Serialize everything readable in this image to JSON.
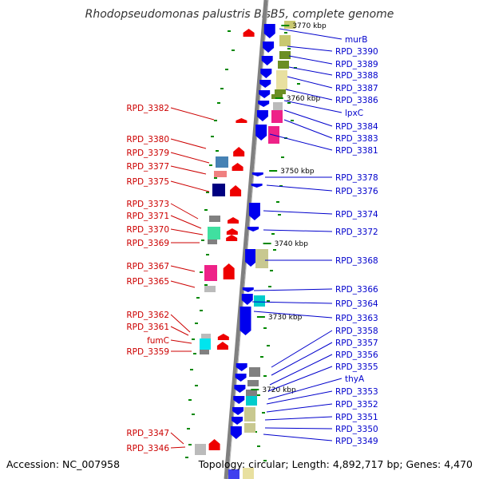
{
  "title": "Rhodopseudomonas palustris BisB5, complete genome",
  "footer": {
    "accession": "Accession: NC_007958",
    "summary": "Topology: circular; Length: 4,892,717 bp; Genes: 4,470"
  },
  "ticks": [
    "3770 kbp",
    "3760 kbp",
    "3750 kbp",
    "3740 kbp",
    "3730 kbp",
    "3720 kbp"
  ],
  "left_labels": [
    "RPD_3382",
    "RPD_3380",
    "RPD_3379",
    "RPD_3377",
    "RPD_3375",
    "RPD_3373",
    "RPD_3371",
    "RPD_3370",
    "RPD_3369",
    "RPD_3367",
    "RPD_3365",
    "RPD_3362",
    "RPD_3361",
    "fumC",
    "RPD_3359",
    "RPD_3347",
    "RPD_3346"
  ],
  "right_labels": [
    "murB",
    "RPD_3390",
    "RPD_3389",
    "RPD_3388",
    "RPD_3387",
    "RPD_3386",
    "lpxC",
    "RPD_3384",
    "RPD_3383",
    "RPD_3381",
    "RPD_3378",
    "RPD_3376",
    "RPD_3374",
    "RPD_3372",
    "RPD_3368",
    "RPD_3366",
    "RPD_3364",
    "RPD_3363",
    "RPD_3358",
    "RPD_3357",
    "RPD_3356",
    "RPD_3355",
    "thyA",
    "RPD_3353",
    "RPD_3352",
    "RPD_3351",
    "RPD_3350",
    "RPD_3349"
  ],
  "colors": {
    "backbone": "#808080",
    "forward_strand": "#0000ee",
    "reverse_strand": "#ee0000",
    "left_label": "#cc0000",
    "right_label": "#0000cc",
    "gc_tick": "#008800"
  }
}
